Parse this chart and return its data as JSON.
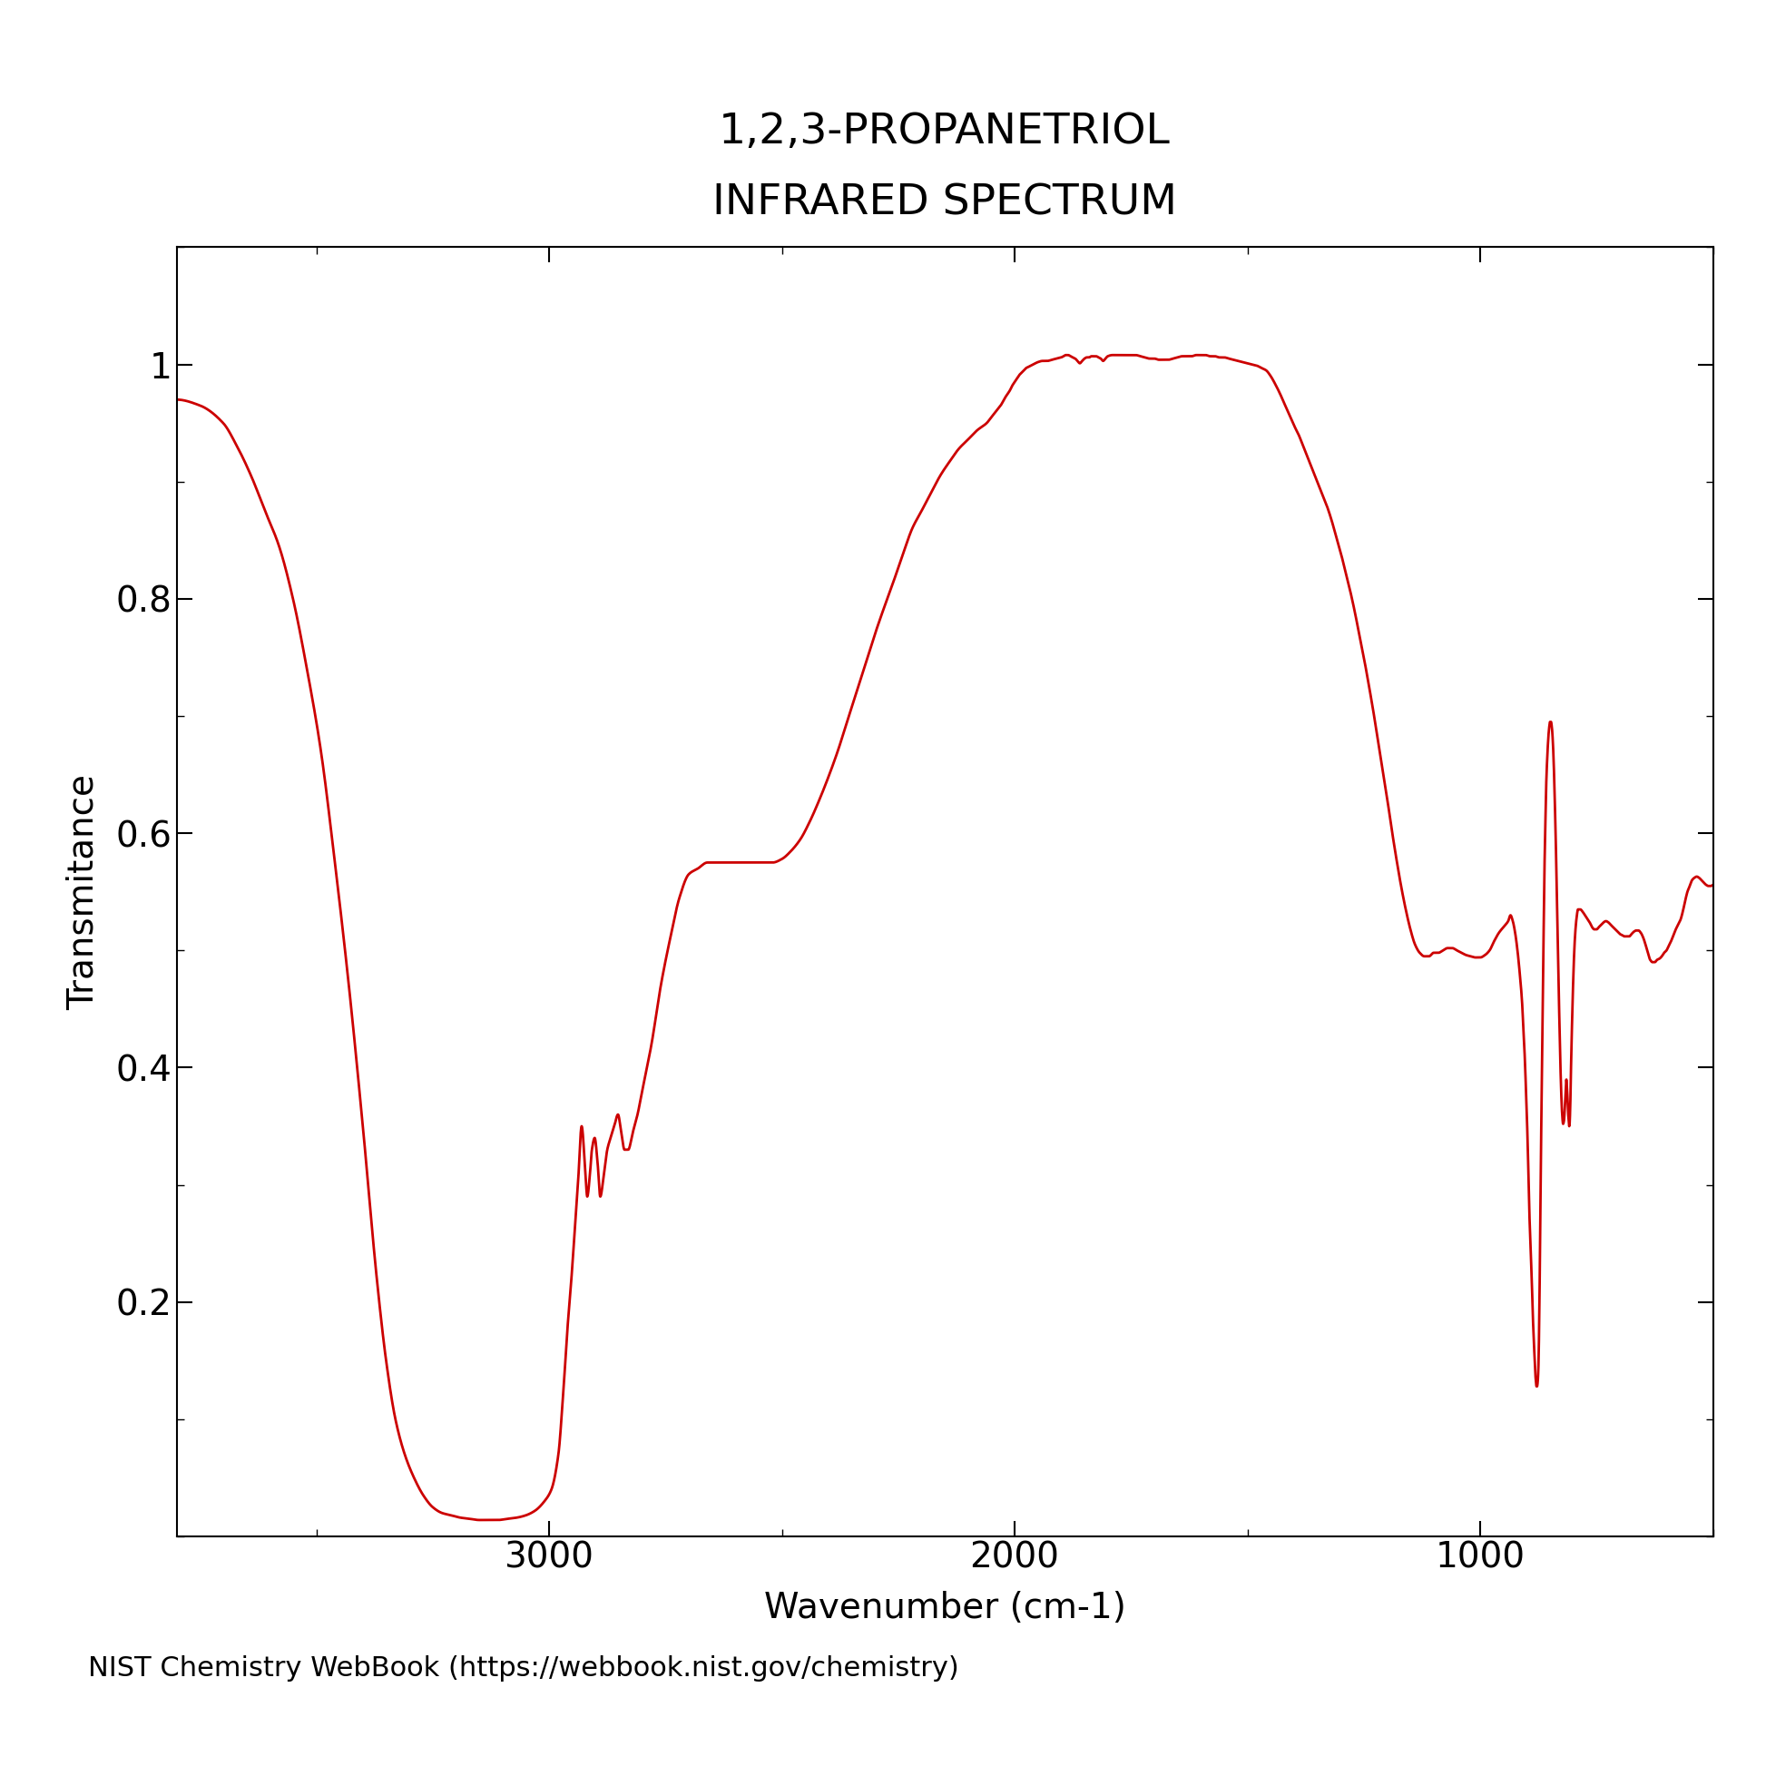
{
  "title_line1": "1,2,3-PROPANETRIOL",
  "title_line2": "INFRARED SPECTRUM",
  "xlabel": "Wavenumber (cm-1)",
  "ylabel": "Transmitance",
  "credit": "NIST Chemistry WebBook (https://webbook.nist.gov/chemistry)",
  "line_color": "#cc0000",
  "background_color": "#ffffff",
  "xlim": [
    3800,
    500
  ],
  "ylim": [
    0.0,
    1.1
  ],
  "yticks": [
    0.2,
    0.4,
    0.6,
    0.8,
    1.0
  ],
  "ytick_labels": [
    "0.2",
    "0.4",
    "0.6",
    "0.8",
    "1"
  ],
  "xticks": [
    3000,
    2000,
    1000
  ],
  "title_fontsize": 34,
  "label_fontsize": 28,
  "tick_fontsize": 28,
  "credit_fontsize": 22,
  "line_width": 2.0
}
